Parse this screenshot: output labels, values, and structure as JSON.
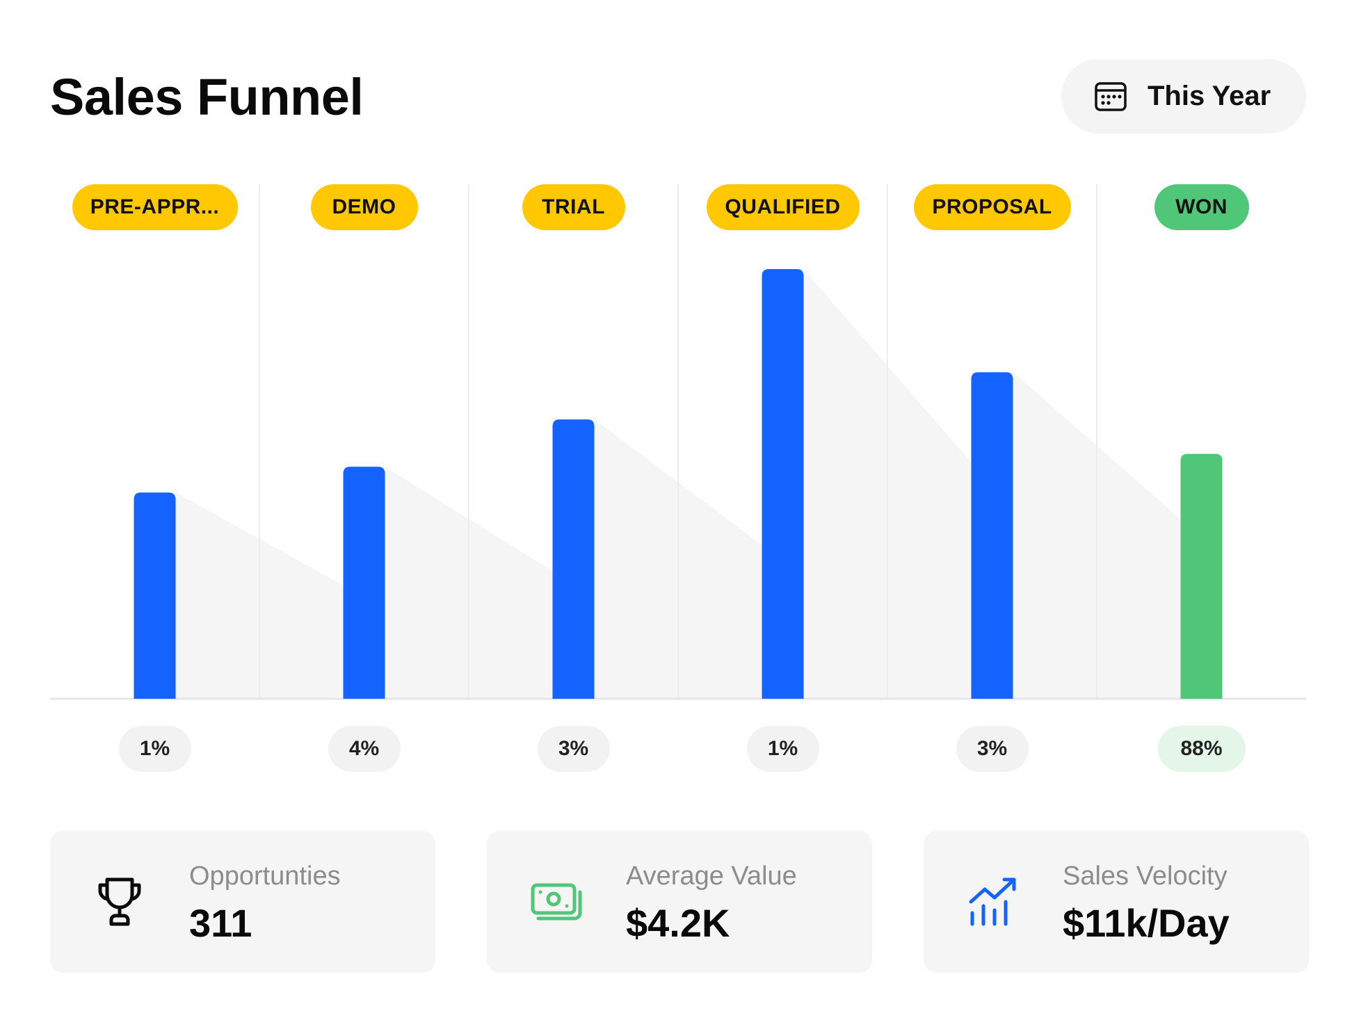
{
  "header": {
    "title": "Sales Funnel",
    "period_label": "This Year",
    "period_icon": "calendar-icon"
  },
  "chart_data": {
    "type": "bar",
    "categories": [
      "PRE-APPR...",
      "DEMO",
      "TRIAL",
      "QUALIFIED",
      "PROPOSAL",
      "WON"
    ],
    "values": [
      48,
      54,
      65,
      100,
      76,
      57
    ],
    "conversion_rates": [
      "1%",
      "4%",
      "3%",
      "1%",
      "3%",
      "88%"
    ],
    "ylim": [
      0,
      100
    ],
    "grid": "vertical separators",
    "colors": {
      "bar": "#1463ff",
      "won_bar": "#4fc678",
      "stage_pill": "#ffc800",
      "won_pill": "#4fc678",
      "funnel_shadow": "#f5f5f5"
    }
  },
  "stats": [
    {
      "label": "Opportunties",
      "value": "311",
      "icon": "trophy-icon",
      "icon_color": "#0a0a0a"
    },
    {
      "label": "Average Value",
      "value": "$4.2K",
      "icon": "money-icon",
      "icon_color": "#4fc678"
    },
    {
      "label": "Sales Velocity",
      "value": "$11k/Day",
      "icon": "trend-chart-icon",
      "icon_color": "#1463ff"
    }
  ]
}
